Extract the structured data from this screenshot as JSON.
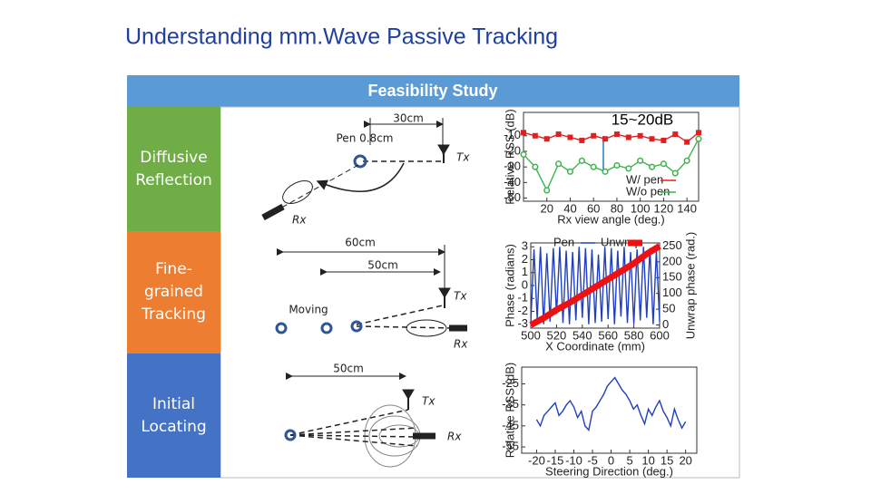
{
  "title": "Understanding mm.Wave Passive Tracking",
  "banner": "Feasibility Study",
  "rows": [
    {
      "label": "Diffusive Reflection"
    },
    {
      "label": "Fine-grained Tracking"
    },
    {
      "label": "Initial Locating"
    }
  ],
  "diagram": {
    "row1": {
      "distance": "30cm",
      "pen": "Pen 0.8cm",
      "tx": "Tx",
      "rx": "Rx"
    },
    "row2": {
      "distance_outer": "60cm",
      "distance_inner": "50cm",
      "tx": "Tx",
      "moving": "Moving",
      "rx": "Rx"
    },
    "row3": {
      "distance": "50cm",
      "tx": "Tx",
      "rx": "Rx"
    }
  },
  "chart_data": [
    {
      "type": "line",
      "annotation": "15~20dB",
      "xlabel": "Rx view angle (deg.)",
      "ylabel": "Relative RSS (dB)",
      "xlim": [
        0,
        150
      ],
      "xticks": [
        20,
        40,
        60,
        80,
        100,
        120,
        140
      ],
      "ylim": [
        -52,
        5
      ],
      "yticks": [
        -10,
        -20,
        -30,
        -40,
        -50
      ],
      "legend": "lower right",
      "series": [
        {
          "name": "W/ pen",
          "color": "#e02020",
          "marker": "square",
          "x": [
            0,
            10,
            20,
            30,
            40,
            50,
            60,
            70,
            80,
            90,
            100,
            110,
            120,
            130,
            140,
            150
          ],
          "values": [
            -8,
            -10,
            -12,
            -9,
            -11,
            -13,
            -10,
            -12,
            -9,
            -11,
            -10,
            -12,
            -13,
            -9,
            -14,
            -8
          ]
        },
        {
          "name": "W/o pen",
          "color": "#3cb44b",
          "marker": "circle",
          "x": [
            0,
            10,
            20,
            30,
            40,
            50,
            60,
            70,
            80,
            90,
            100,
            110,
            120,
            130,
            140,
            150
          ],
          "values": [
            -22,
            -30,
            -45,
            -28,
            -33,
            -26,
            -30,
            -33,
            -29,
            -31,
            -26,
            -30,
            -28,
            -34,
            -26,
            -12
          ]
        }
      ]
    },
    {
      "type": "line",
      "xlabel": "X Coordinate (mm)",
      "ylabel": "Phase (radians)",
      "y2label": "Unwrap phase (rad.)",
      "xlim": [
        500,
        600
      ],
      "xticks": [
        500,
        520,
        540,
        560,
        580,
        600
      ],
      "ylim": [
        -3.3,
        3.3
      ],
      "yticks": [
        3,
        2,
        1,
        0,
        -1,
        -2,
        -3
      ],
      "y2lim": [
        -10,
        260
      ],
      "y2ticks": [
        250,
        200,
        150,
        100,
        50,
        0
      ],
      "legend": "top",
      "series": [
        {
          "name": "Pen",
          "color": "#1f3fbf",
          "x": [
            500,
            502.5,
            505,
            507.5,
            510,
            512.5,
            515,
            517.5,
            520,
            522.5,
            525,
            527.5,
            530,
            532.5,
            535,
            537.5,
            540,
            542.5,
            545,
            547.5,
            550,
            552.5,
            555,
            557.5,
            560,
            562.5,
            565,
            567.5,
            570,
            572.5,
            575,
            577.5,
            580,
            582.5,
            585,
            587.5,
            590,
            592.5,
            595,
            597.5,
            600
          ],
          "values": [
            -2.9,
            2.8,
            -2.6,
            3.0,
            -3.0,
            2.5,
            -2.8,
            2.9,
            -2.2,
            3.0,
            -2.9,
            2.7,
            -3.0,
            2.6,
            -2.7,
            3.0,
            -2.5,
            2.9,
            -3.0,
            2.8,
            -2.9,
            2.4,
            -2.8,
            3.0,
            -2.6,
            2.9,
            -3.0,
            2.7,
            -2.4,
            3.0,
            -2.9,
            2.6,
            -3.0,
            2.8,
            -2.7,
            3.0,
            -2.5,
            2.9,
            -3.0,
            2.7,
            -2.8
          ]
        },
        {
          "name": "Unwrap",
          "color": "#ee1111",
          "axis": "y2",
          "x": [
            500,
            510,
            520,
            530,
            540,
            550,
            560,
            570,
            580,
            590,
            600
          ],
          "values": [
            0,
            22,
            48,
            70,
            95,
            120,
            145,
            170,
            195,
            225,
            250
          ]
        }
      ]
    },
    {
      "type": "line",
      "xlabel": "Steering Direction (deg.)",
      "ylabel": "Relative RSS (dB)",
      "xlim": [
        -24,
        23
      ],
      "xticks": [
        -20,
        -15,
        -10,
        -5,
        0,
        5,
        10,
        15,
        20
      ],
      "ylim": [
        -58,
        -17
      ],
      "yticks": [
        -25,
        -35,
        -45,
        -55
      ],
      "series": [
        {
          "color": "#1f3fbf",
          "x": [
            -20,
            -19,
            -18,
            -17,
            -16,
            -15,
            -14,
            -13,
            -12,
            -11,
            -10,
            -9,
            -8,
            -7,
            -6,
            -5,
            -4,
            -3,
            -2,
            -1,
            0,
            1,
            2,
            3,
            4,
            5,
            6,
            7,
            8,
            9,
            10,
            11,
            12,
            13,
            14,
            15,
            16,
            17,
            18,
            19,
            20
          ],
          "values": [
            -42,
            -45,
            -40,
            -38,
            -36,
            -34,
            -40,
            -38,
            -35,
            -33,
            -36,
            -41,
            -38,
            -45,
            -47,
            -38,
            -36,
            -33,
            -30,
            -26,
            -24,
            -22,
            -25,
            -28,
            -30,
            -33,
            -37,
            -35,
            -40,
            -44,
            -37,
            -40,
            -36,
            -33,
            -38,
            -41,
            -45,
            -37,
            -42,
            -46,
            -43
          ]
        }
      ]
    }
  ]
}
